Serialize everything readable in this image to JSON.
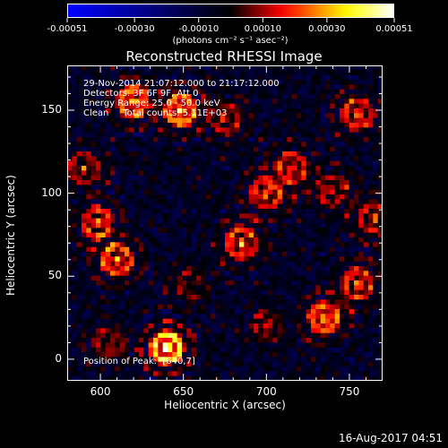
{
  "colorbar": {
    "tick_labels": [
      "-0.00051",
      "-0.00030",
      "-0.00010",
      "0.00010",
      "0.00030",
      "0.00051"
    ],
    "tick_values": [
      -0.00051,
      -0.0003,
      -0.0001,
      0.0001,
      0.0003,
      0.00051
    ],
    "range": [
      -0.00051,
      0.00051
    ],
    "units_label": "(photons cm⁻² s⁻¹ asec⁻²)",
    "colors": [
      "#0000ff",
      "#000000",
      "#ff0000",
      "#ffff00",
      "#ffffff"
    ]
  },
  "annotations": {
    "time_range": "29-Nov-2014 21:07:12.000 to 21:17:12.000",
    "detectors": "Detectors: 3F 6F 9F, Att 0",
    "energy_range": "Energy Range: 25.0 - 50.0 keV",
    "method_counts": "Clean     Total counts: 5.11E+03",
    "peak_position": "Position of Peak:  [640,7]"
  },
  "timestamp": "16-Aug-2017 04:51",
  "chart_data": {
    "type": "heatmap",
    "title": "Reconstructed RHESSI Image",
    "xlabel": "Heliocentric X (arcsec)",
    "ylabel": "Heliocentric Y (arcsec)",
    "xlim": [
      580,
      770
    ],
    "ylim": [
      -13,
      177
    ],
    "x_ticks": [
      600,
      650,
      700,
      750
    ],
    "y_ticks": [
      0,
      50,
      100,
      150
    ],
    "x_tick_labels": [
      "600",
      "650",
      "700",
      "750"
    ],
    "y_tick_labels": [
      "0",
      "50",
      "100",
      "150"
    ],
    "peak": [
      640,
      7
    ],
    "value_range": [
      -0.00051,
      0.00051
    ],
    "features": [
      {
        "x": 640,
        "y": 7,
        "value": 0.00051
      },
      {
        "x": 620,
        "y": 155,
        "value": 0.00036
      },
      {
        "x": 648,
        "y": 150,
        "value": 0.0004
      },
      {
        "x": 610,
        "y": 60,
        "value": 0.00032
      },
      {
        "x": 598,
        "y": 82,
        "value": 0.00028
      },
      {
        "x": 685,
        "y": 70,
        "value": 0.0003
      },
      {
        "x": 700,
        "y": 100,
        "value": 0.00028
      },
      {
        "x": 715,
        "y": 115,
        "value": 0.00024
      },
      {
        "x": 735,
        "y": 25,
        "value": 0.00034
      },
      {
        "x": 755,
        "y": 45,
        "value": 0.00028
      },
      {
        "x": 755,
        "y": 148,
        "value": 0.00026
      },
      {
        "x": 740,
        "y": 102,
        "value": 0.0002
      },
      {
        "x": 590,
        "y": 115,
        "value": 0.00018
      },
      {
        "x": 700,
        "y": 20,
        "value": 0.00016
      },
      {
        "x": 675,
        "y": 145,
        "value": 0.00018
      },
      {
        "x": 655,
        "y": 45,
        "value": 0.00014
      },
      {
        "x": 765,
        "y": 85,
        "value": 0.00022
      },
      {
        "x": 605,
        "y": 10,
        "value": 0.00016
      }
    ]
  }
}
